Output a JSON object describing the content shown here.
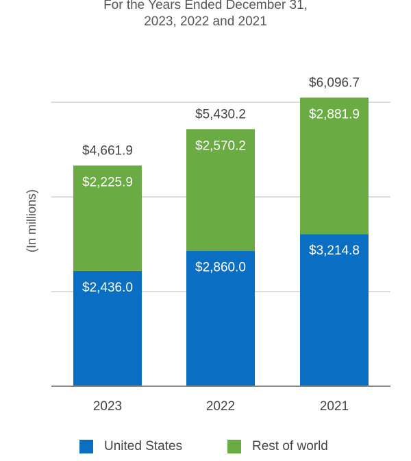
{
  "chart_data": {
    "type": "bar",
    "stacked": true,
    "title": "",
    "subtitle_lines": [
      "For the Years Ended December 31,",
      "2023, 2022 and 2021"
    ],
    "ylabel": "(In millions)",
    "xlabel": "",
    "categories": [
      "2023",
      "2022",
      "2021"
    ],
    "totals": [
      "$4,661.9",
      "$5,430.2",
      "$6,096.7"
    ],
    "series": [
      {
        "name": "United States",
        "color": "#0a6fc2",
        "values": [
          2436.0,
          2860.0,
          3214.8
        ],
        "labels": [
          "$2,436.0",
          "$2,860.0",
          "$3,214.8"
        ]
      },
      {
        "name": "Rest of world",
        "color": "#6aab44",
        "values": [
          2225.9,
          2570.2,
          2881.9
        ],
        "labels": [
          "$2,225.9",
          "$2,570.2",
          "$2,881.9"
        ]
      }
    ],
    "ylim": [
      0,
      6000
    ],
    "grid": true,
    "legend_position": "bottom"
  }
}
